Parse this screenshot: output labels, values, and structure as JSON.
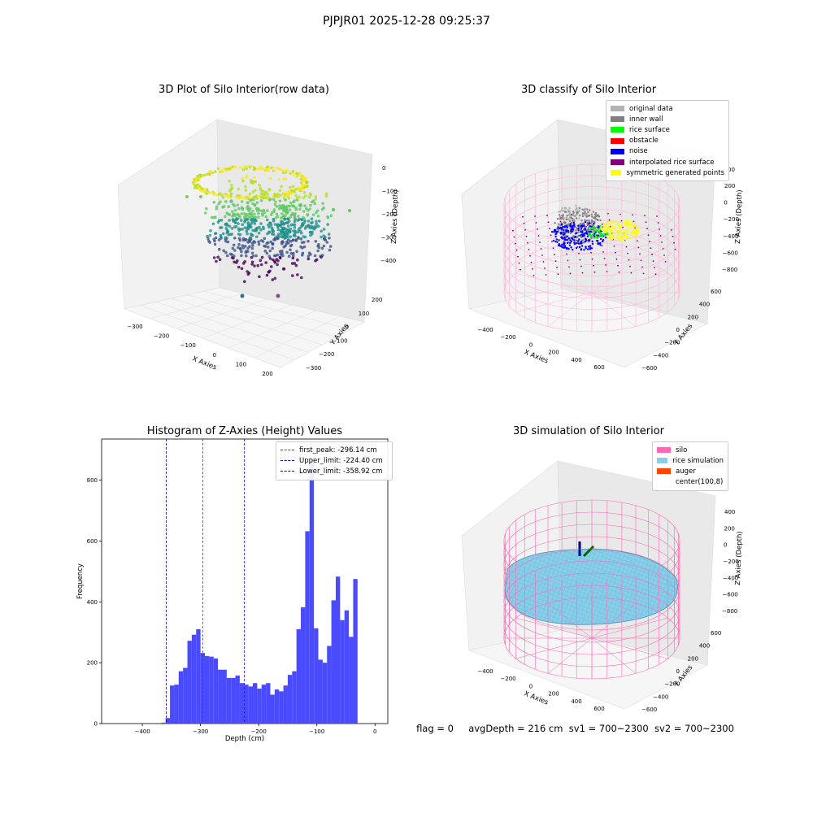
{
  "suptitle": "PJPJR01 2025-12-28 09:25:37",
  "panels": {
    "raw": {
      "title": "3D Plot of Silo Interior(row data)",
      "xlabel": "X Axies",
      "ylabel": "Y Axies",
      "zlabel": "Z Axies (Depth)",
      "xticks": [
        "−300",
        "−200",
        "−100",
        "0",
        "100",
        "200"
      ],
      "yticks": [
        "−300",
        "−200",
        "−100",
        "0",
        "100",
        "200"
      ],
      "zticks": [
        "0",
        "−100",
        "−200",
        "−300",
        "−400"
      ]
    },
    "classify": {
      "title": "3D classify of Silo Interior",
      "xlabel": "X Axies",
      "ylabel": "Y Axies",
      "zlabel": "Z Axies (Depth)",
      "xticks": [
        "−400",
        "−200",
        "0",
        "200",
        "400",
        "600"
      ],
      "yticks": [
        "−600",
        "−400",
        "−200",
        "0",
        "200",
        "400",
        "600"
      ],
      "zticks": [
        "200",
        "0",
        "−200",
        "−400",
        "−600",
        "−800"
      ],
      "ztick_partial": "00",
      "legend": [
        {
          "label": "original data",
          "color": "#b3b3b3"
        },
        {
          "label": "inner wall",
          "color": "#808080"
        },
        {
          "label": "rice surface",
          "color": "#00ff00"
        },
        {
          "label": "obstacle",
          "color": "#ff0000"
        },
        {
          "label": "noise",
          "color": "#0000ff"
        },
        {
          "label": "interpolated rice surface",
          "color": "#800080"
        },
        {
          "label": "symmetric generated points",
          "color": "#ffff00"
        }
      ]
    },
    "simulation": {
      "title": "3D simulation of Silo Interior",
      "xlabel": "X Axies",
      "ylabel": "Y Axies",
      "zlabel": "Z Axies (Depth)",
      "xticks": [
        "−400",
        "−200",
        "0",
        "200",
        "400",
        "600"
      ],
      "yticks": [
        "−600",
        "−400",
        "−200",
        "0",
        "200",
        "400",
        "600"
      ],
      "zticks": [
        "400",
        "200",
        "0",
        "−200",
        "−400",
        "−600",
        "−800"
      ],
      "legend": [
        {
          "label": "silo",
          "color": "#ff69b4"
        },
        {
          "label": "rice simulation",
          "color": "#87ceeb"
        },
        {
          "label": "auger",
          "color": "#ff4500"
        },
        {
          "label": "center(100,8)",
          "color": ""
        }
      ]
    }
  },
  "status": {
    "flag": "flag = 0",
    "avg": "avgDepth = 216 cm",
    "sv1": "sv1 = 700~2300",
    "sv2": "sv2 = 700~2300"
  },
  "chart_data": [
    {
      "type": "bar",
      "title": "Histogram of Z-Axies (Height) Values",
      "xlabel": "Depth (cm)",
      "ylabel": "Frequency",
      "xlim": [
        -470,
        22
      ],
      "ylim": [
        0,
        935
      ],
      "xticks": [
        -400,
        -300,
        -200,
        -100,
        0
      ],
      "xtick_labels": [
        "−400",
        "−300",
        "−200",
        "−100",
        "0"
      ],
      "yticks": [
        0,
        200,
        400,
        600,
        800
      ],
      "bar_color": "#4a4aff",
      "bin_width": 7.5,
      "bins": [
        [
          -367.5,
          3
        ],
        [
          -360,
          18
        ],
        [
          -352.5,
          125
        ],
        [
          -345,
          128
        ],
        [
          -337.5,
          172
        ],
        [
          -330,
          183
        ],
        [
          -322.5,
          272
        ],
        [
          -315,
          292
        ],
        [
          -307.5,
          310
        ],
        [
          -300,
          232
        ],
        [
          -292.5,
          222
        ],
        [
          -285,
          220
        ],
        [
          -277.5,
          214
        ],
        [
          -270,
          177
        ],
        [
          -262.5,
          177
        ],
        [
          -255,
          150
        ],
        [
          -247.5,
          150
        ],
        [
          -240,
          158
        ],
        [
          -232.5,
          133
        ],
        [
          -225,
          128
        ],
        [
          -217.5,
          122
        ],
        [
          -210,
          133
        ],
        [
          -202.5,
          115
        ],
        [
          -195,
          128
        ],
        [
          -187.5,
          133
        ],
        [
          -180,
          95
        ],
        [
          -172.5,
          112
        ],
        [
          -165,
          106
        ],
        [
          -157.5,
          125
        ],
        [
          -150,
          160
        ],
        [
          -142.5,
          172
        ],
        [
          -135,
          310
        ],
        [
          -127.5,
          382
        ],
        [
          -120,
          632
        ],
        [
          -112.5,
          875
        ],
        [
          -105,
          313
        ],
        [
          -97.5,
          210
        ],
        [
          -90,
          200
        ],
        [
          -82.5,
          255
        ],
        [
          -75,
          405
        ],
        [
          -67.5,
          483
        ],
        [
          -60,
          340
        ],
        [
          -52.5,
          372
        ],
        [
          -45,
          285
        ],
        [
          -37.5,
          475
        ]
      ],
      "vlines": [
        {
          "label": "first_peak: -296.14 cm",
          "x": -296.14,
          "color": "#ff0000"
        },
        {
          "label": "Upper_limit: -224.40 cm",
          "x": -224.4,
          "color": "#0000cc"
        },
        {
          "label": "Lower_limit: -358.92 cm",
          "x": -358.92,
          "color": "#0000cc"
        }
      ],
      "legend_position": "top-right"
    }
  ]
}
